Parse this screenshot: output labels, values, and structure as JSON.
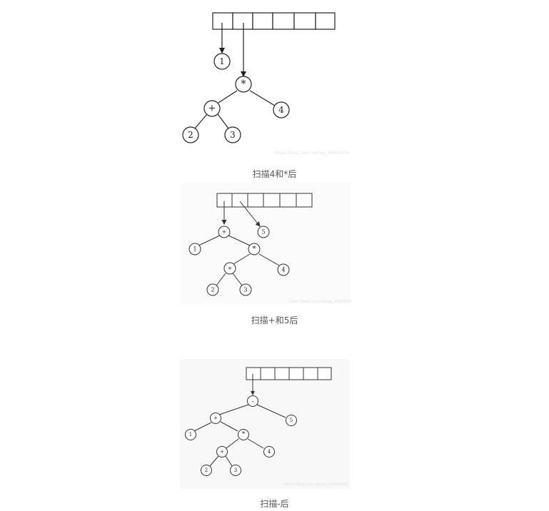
{
  "figures": [
    {
      "caption": "扫描4和*后",
      "watermark": "https://blog.csdn.net/qq_36001936",
      "nodes": {
        "n1": "1",
        "star": "*",
        "plus": "+",
        "four": "4",
        "two": "2",
        "three": "3"
      }
    },
    {
      "caption": "扫描+和5后",
      "watermark": "https://blog.csdn.net/qq_36001936",
      "nodes": {
        "plus_top": "+",
        "five": "5",
        "one": "1",
        "star": "*",
        "plus": "+",
        "four": "4",
        "two": "2",
        "three": "3"
      }
    },
    {
      "caption": "扫描-后",
      "watermark": "https://blog.csdn.net/qq_36001936",
      "nodes": {
        "minus": "-",
        "plus_top": "+",
        "five": "5",
        "one": "1",
        "star": "*",
        "plus": "+",
        "four": "4",
        "two": "2",
        "three": "3"
      }
    }
  ]
}
